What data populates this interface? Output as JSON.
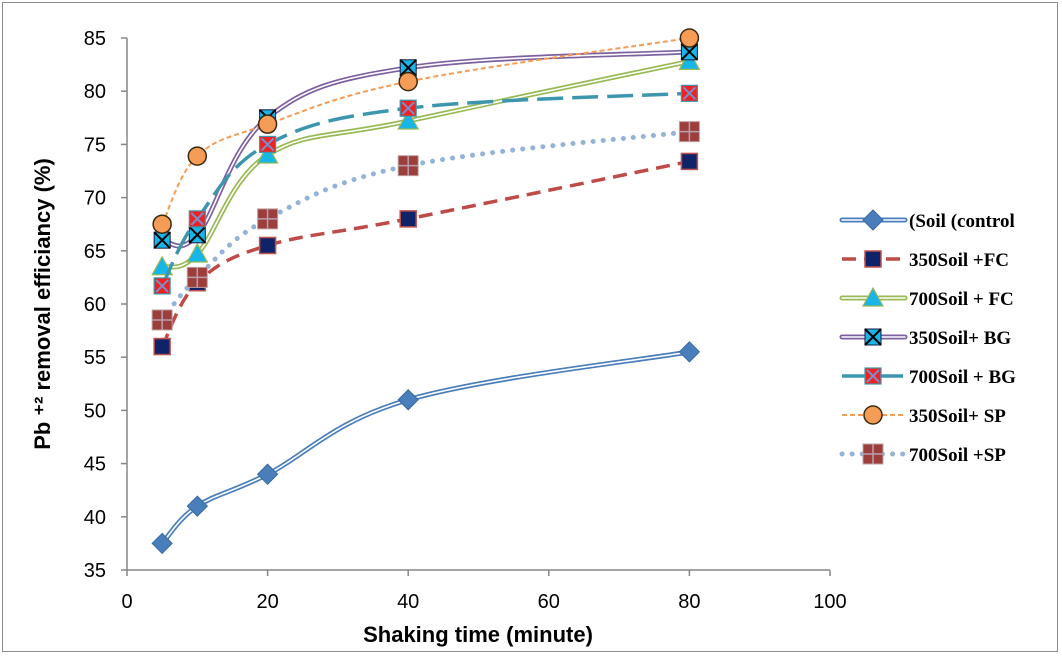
{
  "chart_data": {
    "type": "line",
    "title": "",
    "xlabel": "Shaking time (minute)",
    "ylabel": "Pb ⁺² removal efficiancy (%)",
    "xlim": [
      0,
      100
    ],
    "ylim": [
      35,
      85
    ],
    "xticks": [
      "0",
      "20",
      "40",
      "60",
      "80",
      "100"
    ],
    "yticks": [
      "35",
      "40",
      "45",
      "50",
      "55",
      "60",
      "65",
      "70",
      "75",
      "80",
      "85"
    ],
    "grid": false,
    "legend_position": "right",
    "x": [
      5,
      10,
      20,
      40,
      80
    ],
    "series": [
      {
        "name": "(Soil (control",
        "values": [
          37.5,
          41,
          44,
          51,
          55.5
        ],
        "color": "#4a7ebb",
        "line": "double",
        "marker": "diamond"
      },
      {
        "name": "350Soil +FC",
        "values": [
          56,
          62,
          65.5,
          68,
          73.4
        ],
        "color": "#be4b48",
        "line": "dash",
        "marker": "square-navy"
      },
      {
        "name": "700Soil + FC",
        "values": [
          63.5,
          64.7,
          74,
          77.2,
          82.8
        ],
        "color": "#98b954",
        "line": "double",
        "marker": "triangle"
      },
      {
        "name": "350Soil+ BG",
        "values": [
          66,
          66.5,
          77.5,
          82.2,
          83.7
        ],
        "color": "#7d60a0",
        "line": "double",
        "marker": "x-square"
      },
      {
        "name": "700Soil + BG",
        "values": [
          61.7,
          68,
          75,
          78.4,
          79.8
        ],
        "color": "#3d96ae",
        "line": "longdash",
        "marker": "x-square-red"
      },
      {
        "name": "350Soil+ SP",
        "values": [
          67.5,
          73.9,
          76.9,
          80.9,
          85
        ],
        "color": "#f59d56",
        "line": "shortdash",
        "marker": "circle"
      },
      {
        "name": "700Soil +SP",
        "values": [
          58.5,
          62.5,
          68,
          73,
          76.2
        ],
        "color": "#95b3d7",
        "line": "dot",
        "marker": "plus-square"
      }
    ]
  }
}
